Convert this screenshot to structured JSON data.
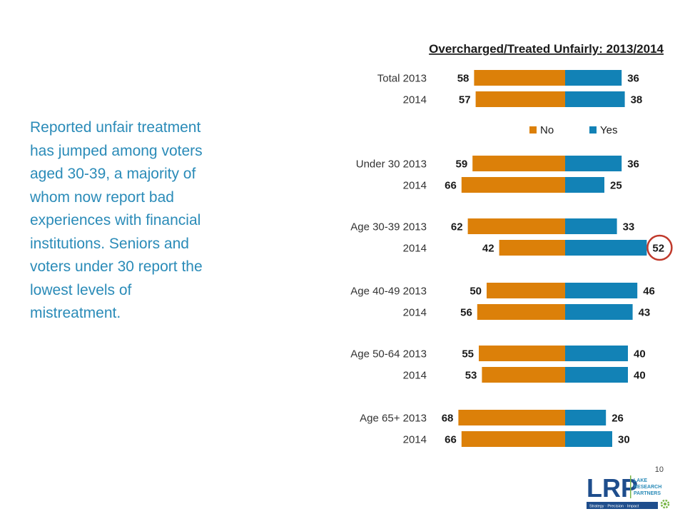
{
  "summary_text": "Reported unfair treatment has jumped among voters aged 30-39, a majority of whom now report bad experiences with financial institutions. Seniors and voters under 30 report the lowest levels of mistreatment.",
  "page_number": "10",
  "logo": {
    "letters": "LRP",
    "name_lines": [
      "LAKE",
      "RESEARCH",
      "PARTNERS"
    ],
    "tagline": "Strategy · Precision · Impact"
  },
  "colors": {
    "no": "#dc8009",
    "yes": "#1282b6",
    "highlight_circle": "#c0392b",
    "summary_text": "#2a8bb8"
  },
  "chart_data": {
    "type": "bar",
    "orientation": "horizontal-diverging",
    "title": "Overcharged/Treated Unfairly: 2013/2014",
    "legend": {
      "position": "top-right",
      "entries": [
        "No",
        "Yes"
      ]
    },
    "categories": [
      "Total 2013",
      "2014",
      "Under 30 2013",
      "2014",
      "Age 30-39 2013",
      "2014",
      "Age 40-49 2013",
      "2014",
      "Age 50-64 2013",
      "2014",
      "Age 65+ 2013",
      "2014"
    ],
    "series": [
      {
        "name": "No",
        "values": [
          58,
          57,
          59,
          66,
          62,
          42,
          50,
          56,
          55,
          53,
          68,
          66
        ]
      },
      {
        "name": "Yes",
        "values": [
          36,
          38,
          36,
          25,
          33,
          52,
          46,
          43,
          40,
          40,
          26,
          30
        ]
      }
    ],
    "highlighted": {
      "category_index": 5,
      "series": "Yes",
      "value": 52
    }
  }
}
